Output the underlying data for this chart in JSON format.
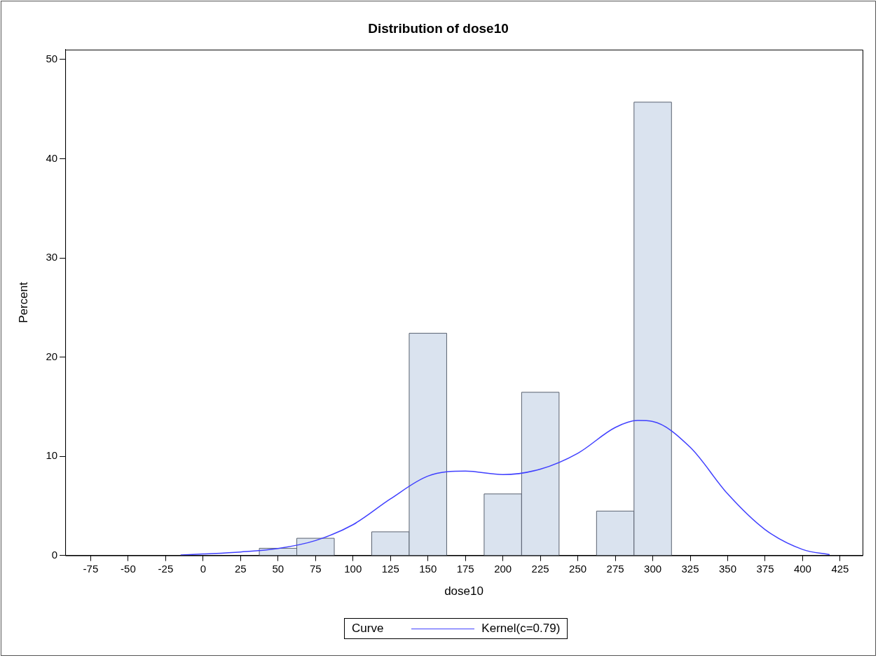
{
  "chart_data": {
    "type": "histogram",
    "title": "Distribution of dose10",
    "xlabel": "dose10",
    "ylabel": "Percent",
    "legend_title": "Curve",
    "legend": "bottom",
    "grid": false,
    "xlim": [
      -92,
      440
    ],
    "xticks": [
      -75,
      -50,
      -25,
      0,
      25,
      50,
      75,
      100,
      125,
      150,
      175,
      200,
      225,
      250,
      275,
      300,
      325,
      350,
      375,
      400,
      425
    ],
    "ylim": [
      0,
      51
    ],
    "yticks": [
      0,
      10,
      20,
      30,
      40,
      50
    ],
    "series": [
      {
        "type": "histogram",
        "color": "#dae3ef",
        "bins": [
          37.5,
          62.5,
          87.5,
          112.5,
          137.5,
          162.5,
          187.5,
          212.5,
          237.5,
          262.5,
          287.5,
          312.5
        ],
        "values": [
          0.72,
          1.73,
          0,
          2.38,
          22.4,
          0,
          6.2,
          16.45,
          0,
          4.47,
          45.7
        ]
      },
      {
        "type": "line",
        "name": "Kernel(c=0.79)",
        "color": "#4040ff",
        "x": [
          -15,
          0,
          25,
          50,
          75,
          100,
          125,
          150,
          175,
          200,
          225,
          250,
          275,
          290,
          300,
          325,
          350,
          375,
          400,
          418
        ],
        "values": [
          0.05,
          0.15,
          0.35,
          0.7,
          1.5,
          3.1,
          5.7,
          8.0,
          8.5,
          8.15,
          8.7,
          10.3,
          12.9,
          13.6,
          13.5,
          10.9,
          6.2,
          2.6,
          0.6,
          0.07
        ]
      }
    ]
  }
}
